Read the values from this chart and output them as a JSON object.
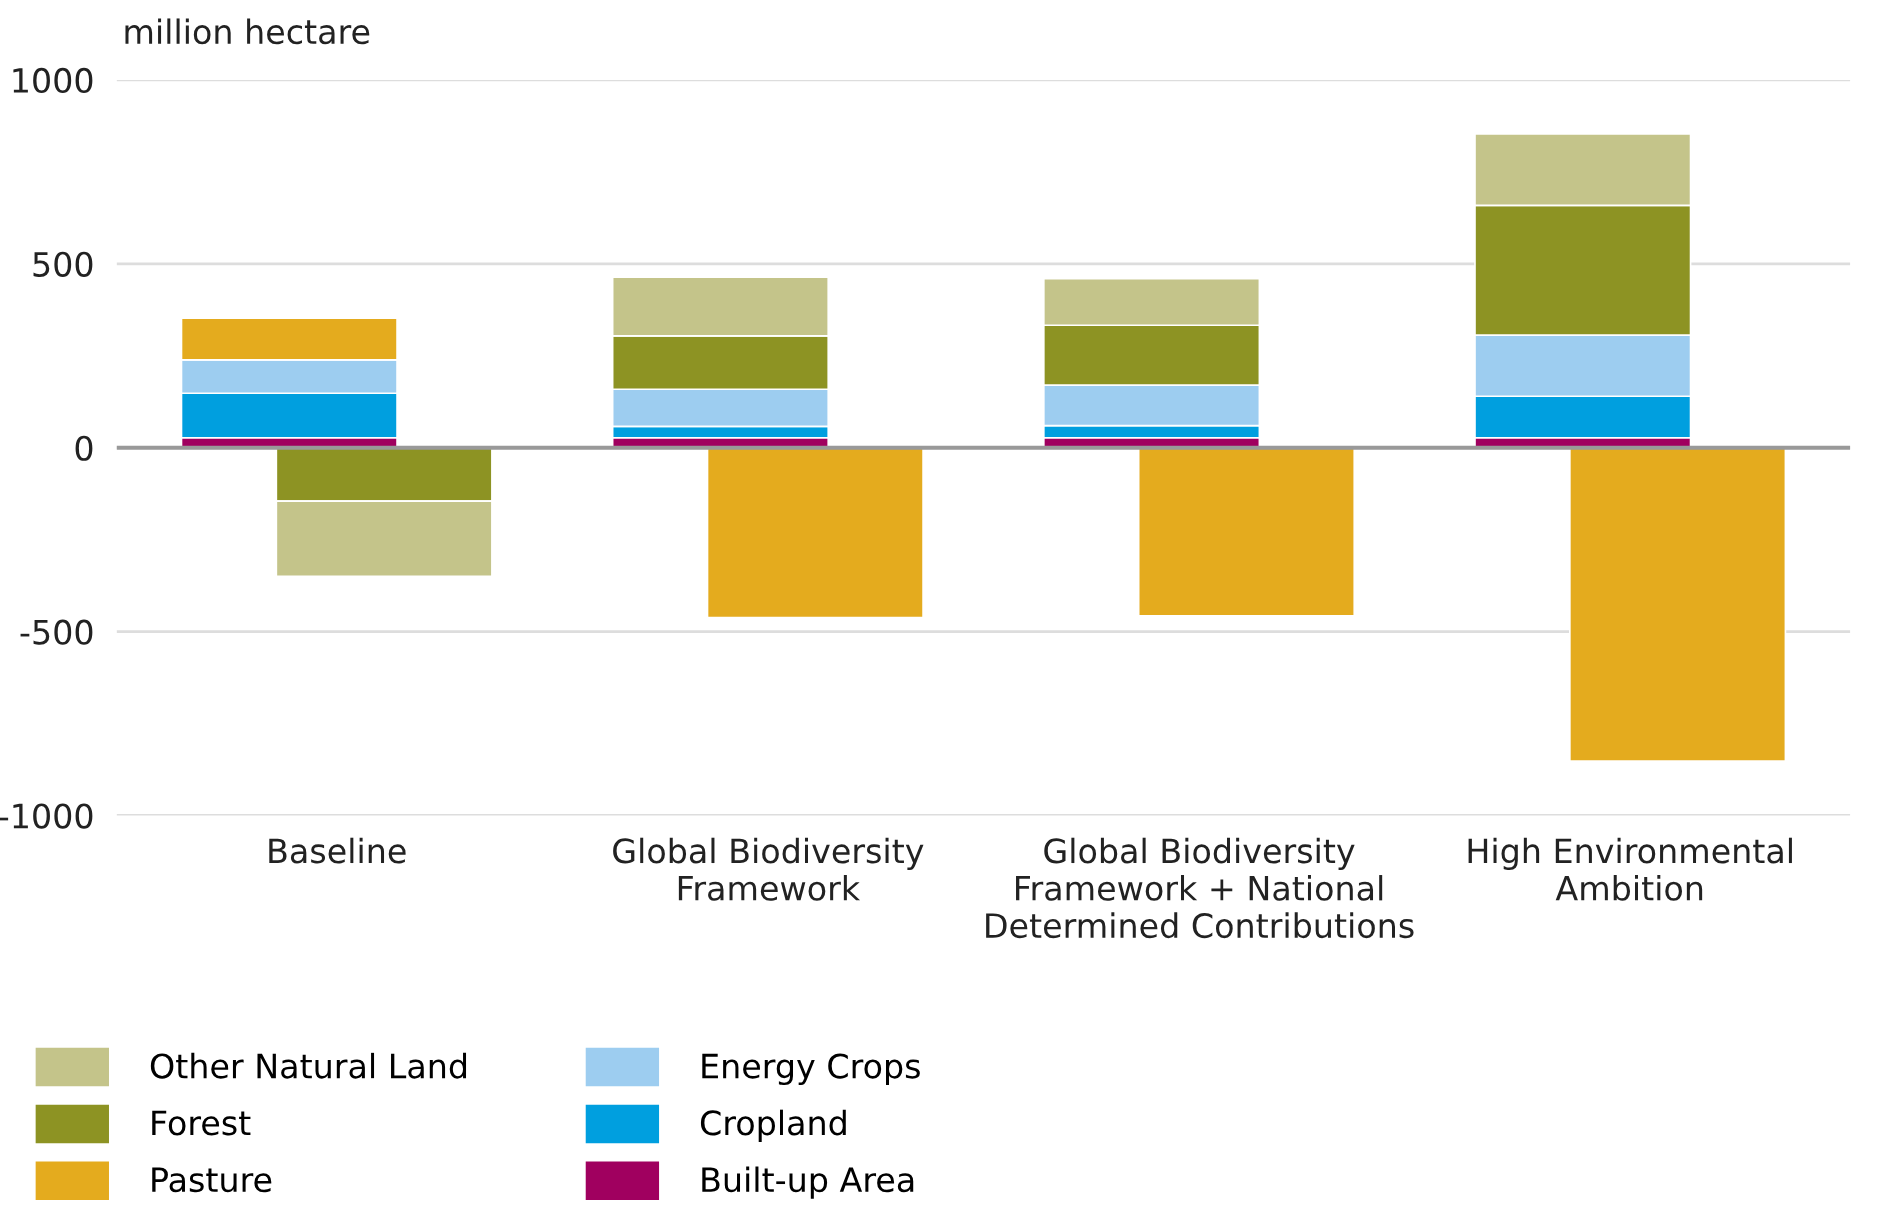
{
  "chart_data": {
    "type": "bar",
    "stacked": true,
    "ylabel": "million hectare",
    "categories": [
      "Baseline",
      "Global Biodiversity\nFramework",
      "Global Biodiversity\nFramework + National\nDetermined Contributions",
      "High Environmental\nAmbition"
    ],
    "series": [
      {
        "name": "Built-up Area",
        "color": "#a0005f",
        "values": [
          27,
          27,
          27,
          27
        ]
      },
      {
        "name": "Cropland",
        "color": "#009fdf",
        "values": [
          121,
          31,
          33,
          113
        ]
      },
      {
        "name": "Energy Crops",
        "color": "#9dcdf0",
        "values": [
          91,
          101,
          110,
          166
        ]
      },
      {
        "name": "Pasture",
        "color": "#e4ab1e",
        "values": [
          113,
          -462,
          -457,
          -852
        ]
      },
      {
        "name": "Forest",
        "color": "#8d9323",
        "values": [
          -145,
          145,
          163,
          353
        ]
      },
      {
        "name": "Other Natural Land",
        "color": "#c4c48a",
        "values": [
          -205,
          160,
          127,
          194
        ]
      }
    ],
    "ylim": [
      -1000,
      1000
    ],
    "yticks": [
      -1000,
      -500,
      0,
      500,
      1000
    ],
    "grid": "y",
    "legend": "bottom left"
  }
}
